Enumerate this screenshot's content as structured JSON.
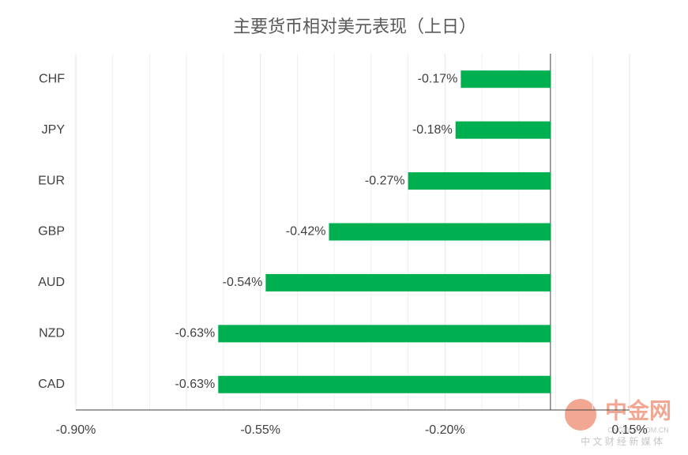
{
  "chart_data": {
    "type": "hbar",
    "title": "主要货币相对美元表现（上日）",
    "categories": [
      "CHF",
      "JPY",
      "EUR",
      "GBP",
      "AUD",
      "NZD",
      "CAD"
    ],
    "values": [
      -0.17,
      -0.18,
      -0.27,
      -0.42,
      -0.54,
      -0.63,
      -0.63
    ],
    "value_labels": [
      "-0.17%",
      "-0.18%",
      "-0.27%",
      "-0.42%",
      "-0.54%",
      "-0.63%",
      "-0.63%"
    ],
    "color": "#00b050",
    "xlim": [
      -0.9,
      0.15
    ],
    "xticks": [
      {
        "value": -0.9,
        "label": "-0.90%"
      },
      {
        "value": -0.55,
        "label": "-0.55%"
      },
      {
        "value": -0.2,
        "label": "-0.20%"
      },
      {
        "value": 0.15,
        "label": "0.15%"
      }
    ],
    "x_minor_ticks": [
      -0.83,
      -0.76,
      -0.69,
      -0.62,
      -0.48,
      -0.41,
      -0.34,
      -0.27,
      -0.13,
      -0.06,
      0.01,
      0.08
    ],
    "grid": true
  },
  "watermark": {
    "name": "中金网",
    "url": "CNGOLD.COM.CN",
    "slogan": "中 文 财 经 新 媒 体"
  }
}
